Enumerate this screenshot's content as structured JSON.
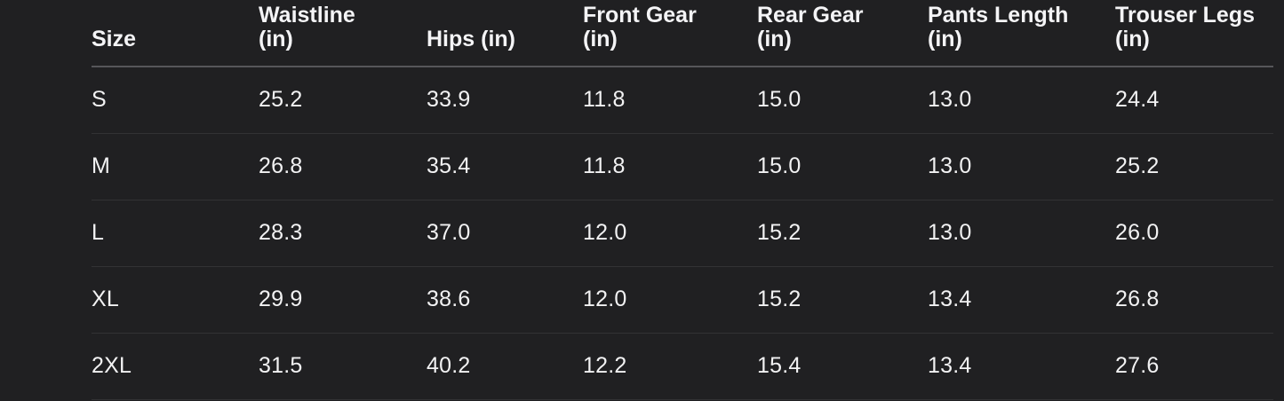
{
  "page": {
    "background_color": "#202022",
    "text_color": "#f2f2f3",
    "header_divider_color": "#56565a",
    "row_divider_color": "#323234"
  },
  "size_chart": {
    "columns": [
      {
        "lines": [
          "Size"
        ]
      },
      {
        "lines": [
          "Waistline",
          "(in)"
        ]
      },
      {
        "lines": [
          "Hips (in)"
        ]
      },
      {
        "lines": [
          "Front Gear",
          "(in)"
        ]
      },
      {
        "lines": [
          "Rear Gear",
          "(in)"
        ]
      },
      {
        "lines": [
          "Pants Length",
          "(in)"
        ]
      },
      {
        "lines": [
          "Trouser Legs",
          "(in)"
        ]
      }
    ],
    "rows": [
      {
        "size": "S",
        "values": [
          "25.2",
          "33.9",
          "11.8",
          "15.0",
          "13.0",
          "24.4"
        ]
      },
      {
        "size": "M",
        "values": [
          "26.8",
          "35.4",
          "11.8",
          "15.0",
          "13.0",
          "25.2"
        ]
      },
      {
        "size": "L",
        "values": [
          "28.3",
          "37.0",
          "12.0",
          "15.2",
          "13.0",
          "26.0"
        ]
      },
      {
        "size": "XL",
        "values": [
          "29.9",
          "38.6",
          "12.0",
          "15.2",
          "13.4",
          "26.8"
        ]
      },
      {
        "size": "2XL",
        "values": [
          "31.5",
          "40.2",
          "12.2",
          "15.4",
          "13.4",
          "27.6"
        ]
      }
    ]
  }
}
